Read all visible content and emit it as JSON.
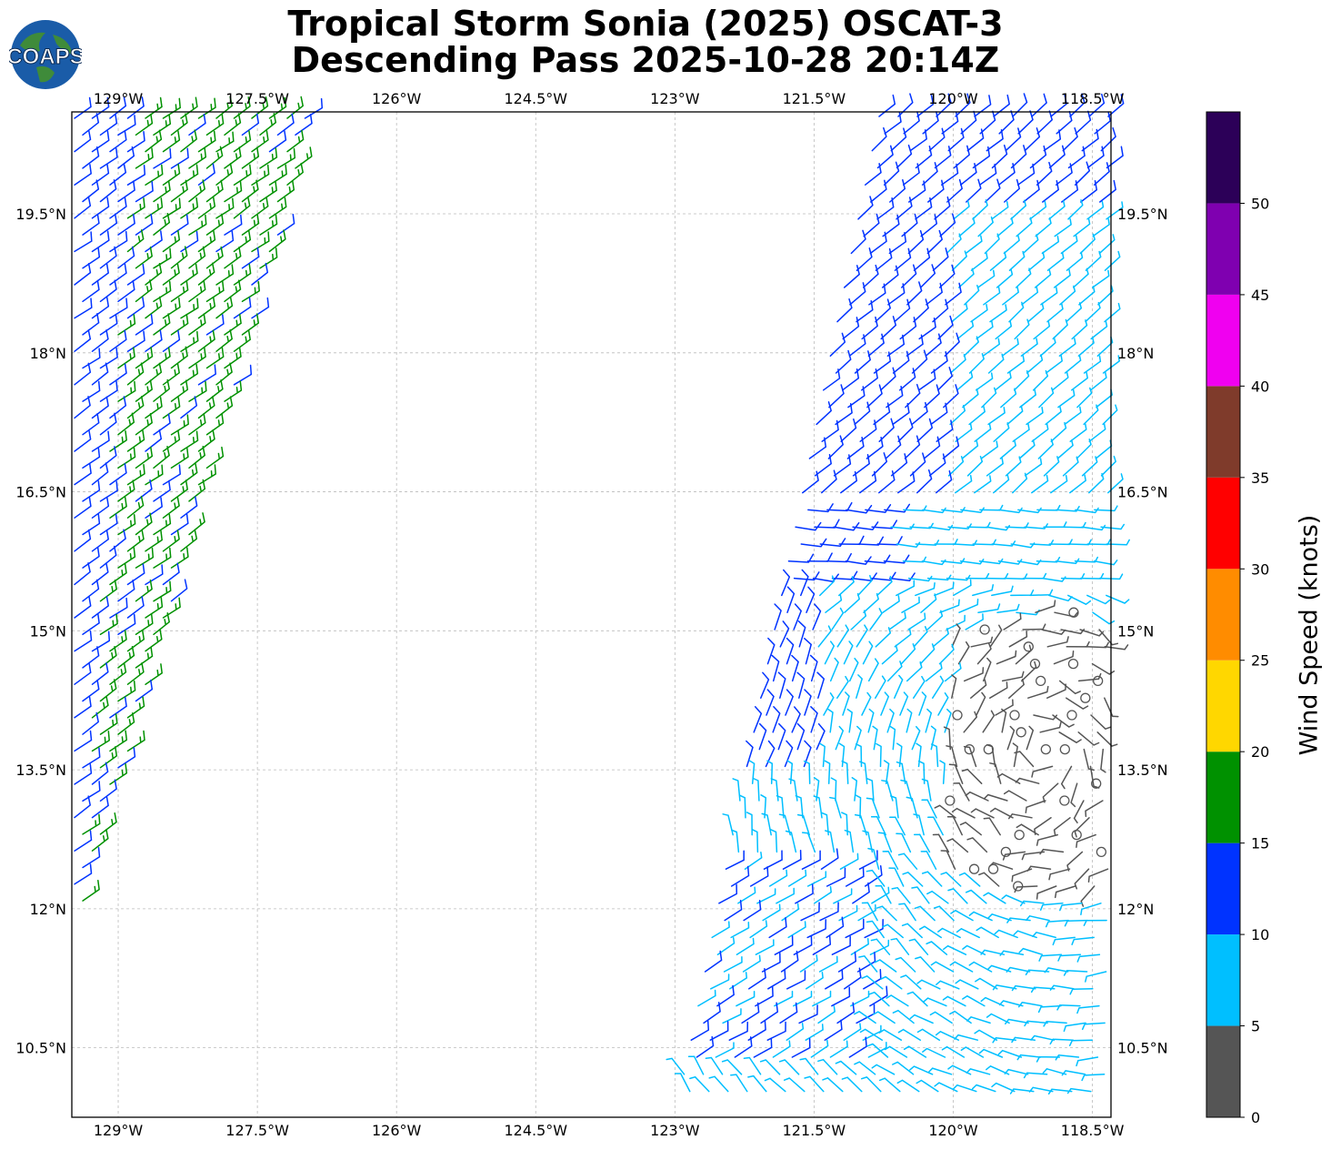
{
  "title": {
    "line1": "Tropical Storm Sonia (2025) OSCAT-3",
    "line2": "Descending Pass 2025-10-28 20:14Z"
  },
  "logo": {
    "text": "COAPS",
    "icon": "globe-icon"
  },
  "map": {
    "lon_ticks": [
      "129°W",
      "127.5°W",
      "126°W",
      "124.5°W",
      "123°W",
      "121.5°W",
      "120°W",
      "118.5°W"
    ],
    "lat_ticks": [
      "19.5°N",
      "18°N",
      "16.5°N",
      "15°N",
      "13.5°N",
      "12°N",
      "10.5°N"
    ],
    "lon_range": [
      -129.5,
      -118.3
    ],
    "lat_range": [
      9.75,
      20.6
    ],
    "gridlines": true
  },
  "colorbar": {
    "label": "Wind Speed (knots)",
    "ticks": [
      "0",
      "5",
      "10",
      "15",
      "20",
      "25",
      "30",
      "35",
      "40",
      "45",
      "50"
    ],
    "bins": [
      {
        "range": [
          0,
          5
        ],
        "color": "#555555"
      },
      {
        "range": [
          5,
          10
        ],
        "color": "#00bfff"
      },
      {
        "range": [
          10,
          15
        ],
        "color": "#0033ff"
      },
      {
        "range": [
          15,
          20
        ],
        "color": "#009100"
      },
      {
        "range": [
          20,
          25
        ],
        "color": "#ffd700"
      },
      {
        "range": [
          25,
          30
        ],
        "color": "#ff8c00"
      },
      {
        "range": [
          30,
          35
        ],
        "color": "#ff0000"
      },
      {
        "range": [
          35,
          40
        ],
        "color": "#7f3b2b"
      },
      {
        "range": [
          40,
          45
        ],
        "color": "#f000f0"
      },
      {
        "range": [
          45,
          50
        ],
        "color": "#7f00b0"
      },
      {
        "range": [
          50,
          55
        ],
        "color": "#2c0058"
      }
    ]
  },
  "wind_swaths": [
    {
      "name": "west-swath",
      "description_color_classes": [
        "#0033ff",
        "#009100"
      ]
    },
    {
      "name": "east-swath",
      "description_color_classes": [
        "#0033ff",
        "#00bfff",
        "#555555"
      ]
    }
  ]
}
